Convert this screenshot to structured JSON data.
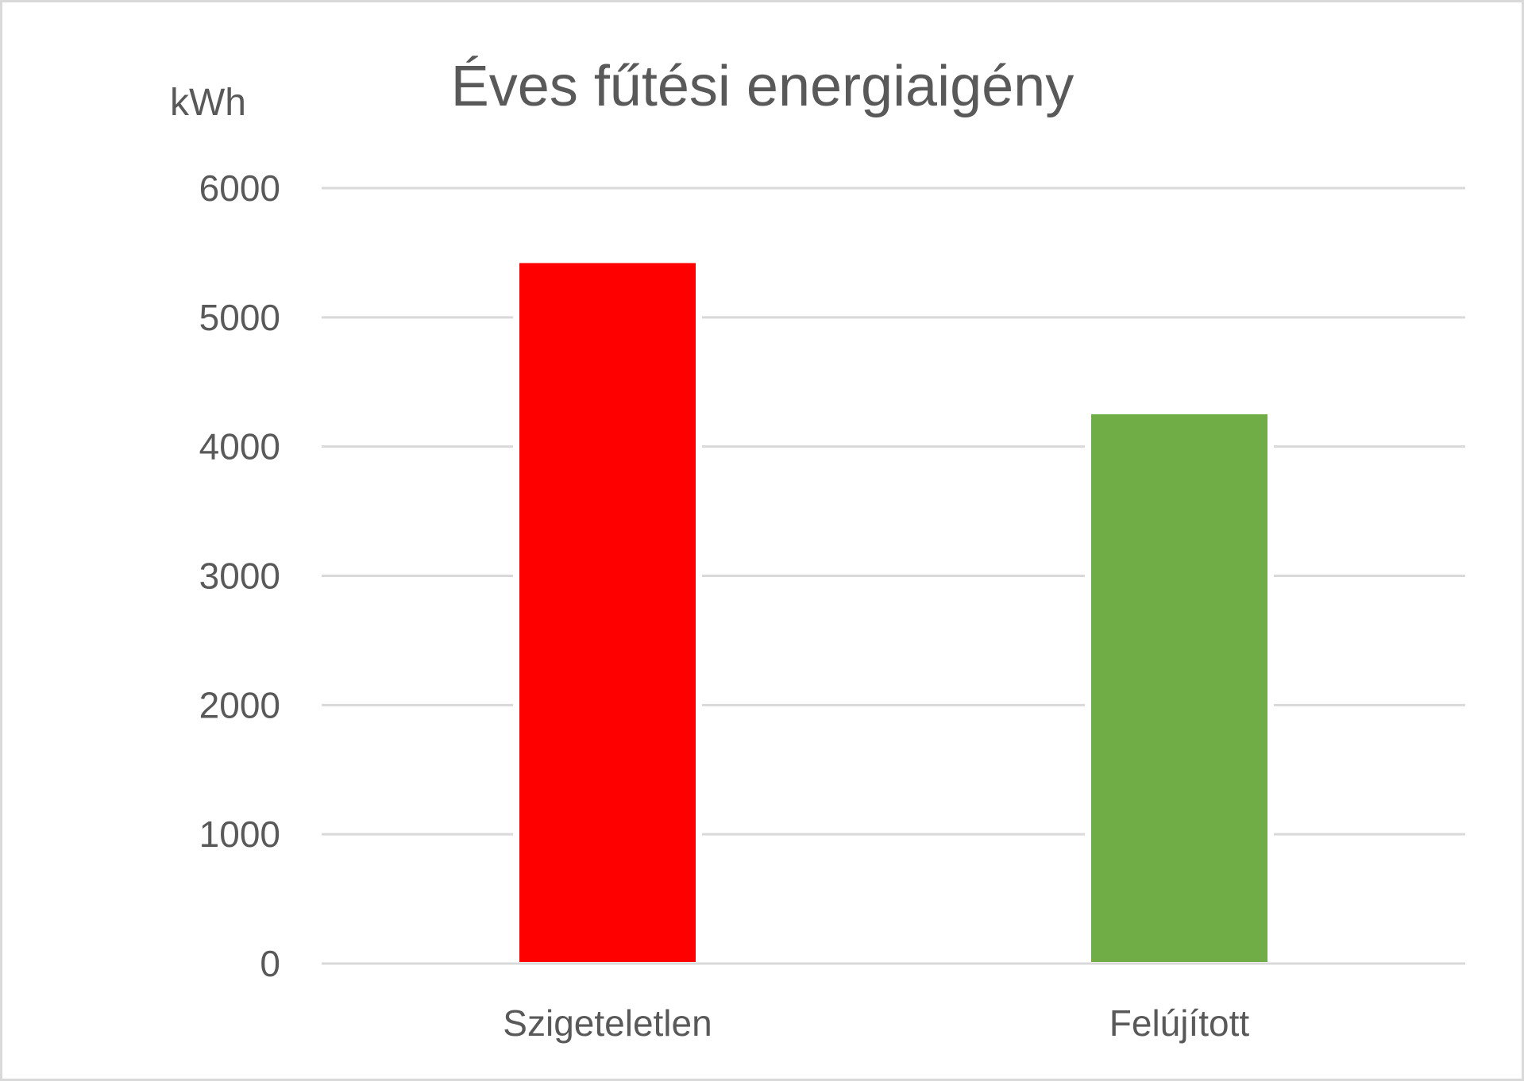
{
  "chart_data": {
    "type": "bar",
    "title": "Éves fűtési energiaigény",
    "ylabel": "kWh",
    "xlabel": "",
    "categories": [
      "Szigeteletlen",
      "Felújított"
    ],
    "values": [
      5420,
      4250
    ],
    "colors": [
      "#ff0000",
      "#70ad47"
    ],
    "ylim": [
      0,
      6000
    ],
    "yticks": [
      0,
      1000,
      2000,
      3000,
      4000,
      5000,
      6000
    ],
    "grid": true,
    "legend": "none"
  }
}
